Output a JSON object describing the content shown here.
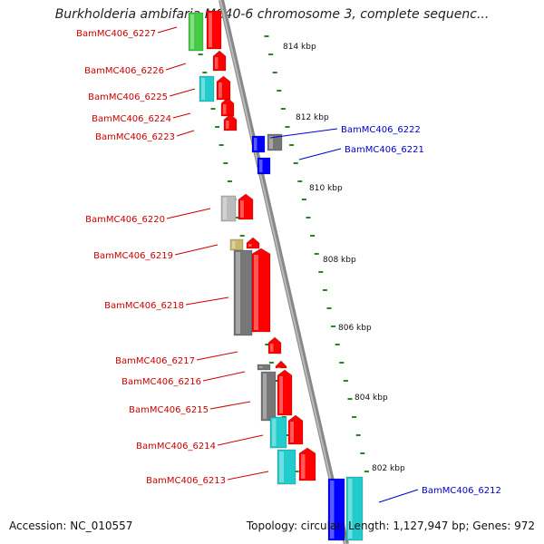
{
  "title": "Burkholderia ambifaria MC40-6 chromosome 3, complete sequenc...",
  "footer": {
    "accession": "Accession: NC_010557",
    "topology": "Topology: circular; Length: 1,127,947 bp; Genes: 972"
  },
  "scale_labels": [
    "814 kbp",
    "812 kbp",
    "810 kbp",
    "808 kbp",
    "806 kbp",
    "804 kbp",
    "802 kbp"
  ],
  "genes_left": [
    {
      "label": "BamMC406_6227",
      "color": "#cc0000"
    },
    {
      "label": "BamMC406_6226",
      "color": "#cc0000"
    },
    {
      "label": "BamMC406_6225",
      "color": "#cc0000"
    },
    {
      "label": "BamMC406_6224",
      "color": "#cc0000"
    },
    {
      "label": "BamMC406_6223",
      "color": "#cc0000"
    },
    {
      "label": "BamMC406_6220",
      "color": "#cc0000"
    },
    {
      "label": "BamMC406_6219",
      "color": "#cc0000"
    },
    {
      "label": "BamMC406_6218",
      "color": "#cc0000"
    },
    {
      "label": "BamMC406_6217",
      "color": "#cc0000"
    },
    {
      "label": "BamMC406_6216",
      "color": "#cc0000"
    },
    {
      "label": "BamMC406_6215",
      "color": "#cc0000"
    },
    {
      "label": "BamMC406_6214",
      "color": "#cc0000"
    },
    {
      "label": "BamMC406_6213",
      "color": "#cc0000"
    }
  ],
  "genes_right": [
    {
      "label": "BamMC406_6222",
      "color": "#0000cc"
    },
    {
      "label": "BamMC406_6221",
      "color": "#0000cc"
    },
    {
      "label": "BamMC406_6212",
      "color": "#0000cc"
    }
  ],
  "colors": {
    "forward_gene": "#ff0000",
    "reverse_gene": "#0000ff",
    "backbone": "#999999",
    "tick": "#228822",
    "cog_gray": "#777777",
    "cog_cyan": "#22cccc",
    "cog_green": "#44cc44",
    "cog_khaki": "#c8b870",
    "cog_lightgray": "#bbbbbb"
  }
}
